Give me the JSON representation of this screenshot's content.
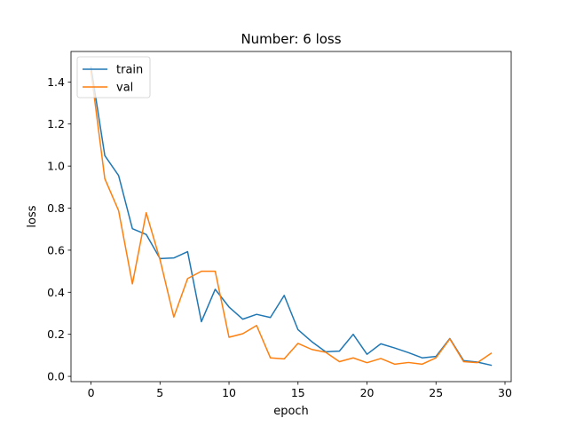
{
  "chart_data": {
    "type": "line",
    "title": "Number: 6 loss",
    "xlabel": "epoch",
    "ylabel": "loss",
    "xlim": [
      -1.45,
      30.45
    ],
    "ylim": [
      -0.025,
      1.545
    ],
    "xticks": [
      0,
      5,
      10,
      15,
      20,
      25,
      30
    ],
    "yticks": [
      0.0,
      0.2,
      0.4,
      0.6,
      0.8,
      1.0,
      1.2,
      1.4
    ],
    "grid": false,
    "legend_position": "upper-left",
    "x": [
      0,
      1,
      2,
      3,
      4,
      5,
      6,
      7,
      8,
      9,
      10,
      11,
      12,
      13,
      14,
      15,
      16,
      17,
      18,
      19,
      20,
      21,
      22,
      23,
      24,
      25,
      26,
      27,
      28,
      29
    ],
    "series": [
      {
        "name": "train",
        "color": "#1f77b4",
        "values": [
          1.47,
          1.05,
          0.955,
          0.702,
          0.675,
          0.56,
          0.563,
          0.593,
          0.26,
          0.414,
          0.33,
          0.272,
          0.295,
          0.28,
          0.385,
          0.222,
          0.165,
          0.117,
          0.12,
          0.2,
          0.105,
          0.155,
          0.135,
          0.113,
          0.088,
          0.095,
          0.18,
          0.075,
          0.068,
          0.053
        ]
      },
      {
        "name": "val",
        "color": "#ff7f0e",
        "values": [
          1.45,
          0.94,
          0.788,
          0.44,
          0.778,
          0.555,
          0.282,
          0.465,
          0.5,
          0.5,
          0.186,
          0.203,
          0.242,
          0.088,
          0.083,
          0.157,
          0.128,
          0.115,
          0.07,
          0.088,
          0.065,
          0.085,
          0.058,
          0.066,
          0.058,
          0.088,
          0.178,
          0.07,
          0.065,
          0.11
        ]
      }
    ]
  }
}
